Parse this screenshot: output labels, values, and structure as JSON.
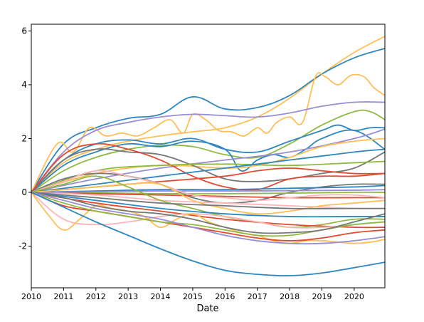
{
  "chart_data": {
    "type": "line",
    "title": "",
    "xlabel": "Date",
    "ylabel": "",
    "xlim": [
      2010.0,
      2020.95
    ],
    "ylim": [
      -3.55,
      6.25
    ],
    "x_ticks": [
      2010,
      2011,
      2012,
      2013,
      2014,
      2015,
      2016,
      2017,
      2018,
      2019,
      2020
    ],
    "x_tick_labels": [
      "2010",
      "2011",
      "2012",
      "2013",
      "2014",
      "2015",
      "2016",
      "2017",
      "2018",
      "2019",
      "2020"
    ],
    "y_ticks": [
      -2,
      0,
      2,
      4,
      6
    ],
    "y_tick_labels": [
      "-2",
      "0",
      "2",
      "4",
      "6"
    ],
    "grid": false,
    "legend": "none",
    "series": [
      {
        "color": "#ffbf56",
        "x": [
          2010,
          2011,
          2012,
          2013,
          2014,
          2015,
          2016,
          2017,
          2018,
          2019,
          2020,
          2020.95
        ],
        "y": [
          0,
          1.1,
          1.6,
          1.9,
          2.1,
          2.25,
          2.4,
          2.8,
          3.5,
          4.4,
          5.2,
          5.8
        ]
      },
      {
        "color": "#2f87c0",
        "x": [
          2010,
          2011,
          2012,
          2013,
          2014,
          2015,
          2016,
          2017,
          2018,
          2019,
          2020,
          2020.95
        ],
        "y": [
          0,
          1.8,
          2.4,
          2.75,
          2.9,
          3.55,
          3.1,
          3.15,
          3.6,
          4.4,
          5.0,
          5.35
        ]
      },
      {
        "color": "#ffbf56",
        "x": [
          2010,
          2010.8,
          2011.3,
          2011.8,
          2012.3,
          2012.8,
          2013.3,
          2013.8,
          2014.3,
          2014.7,
          2015.0,
          2015.4,
          2015.8,
          2016.2,
          2016.6,
          2017.0,
          2017.3,
          2017.6,
          2018.0,
          2018.4,
          2018.8,
          2019.1,
          2019.5,
          2019.9,
          2020.3,
          2020.6,
          2020.95
        ],
        "y": [
          0,
          1.8,
          1.5,
          2.4,
          2.1,
          2.2,
          2.1,
          2.4,
          2.7,
          2.2,
          2.9,
          2.7,
          2.3,
          2.25,
          2.1,
          2.4,
          2.2,
          2.6,
          2.8,
          2.6,
          4.3,
          4.3,
          4.0,
          4.35,
          4.3,
          3.9,
          3.6
        ]
      },
      {
        "color": "#988ed5",
        "x": [
          2010,
          2011,
          2012,
          2013,
          2014,
          2015,
          2016,
          2017,
          2018,
          2019,
          2020,
          2020.95
        ],
        "y": [
          0,
          1.5,
          2.3,
          2.6,
          2.8,
          2.9,
          2.85,
          2.8,
          2.95,
          3.2,
          3.35,
          3.35
        ]
      },
      {
        "color": "#8eba42",
        "x": [
          2010,
          2011,
          2012,
          2013,
          2014,
          2015,
          2016,
          2017,
          2018,
          2019,
          2020,
          2020.5,
          2020.95
        ],
        "y": [
          0,
          0.8,
          1.3,
          1.6,
          1.75,
          1.7,
          1.4,
          1.3,
          1.8,
          2.5,
          3.0,
          3.0,
          2.7
        ]
      },
      {
        "color": "#2f87c0",
        "x": [
          2010,
          2011,
          2012,
          2013,
          2014,
          2015,
          2016,
          2017,
          2018,
          2019,
          2019.5,
          2020,
          2020.5,
          2020.95
        ],
        "y": [
          0,
          1.2,
          1.8,
          1.95,
          1.8,
          2.0,
          1.6,
          1.5,
          1.9,
          2.3,
          2.5,
          2.3,
          2.4,
          2.4
        ]
      },
      {
        "color": "#2f87c0",
        "x": [
          2010,
          2011,
          2012,
          2013,
          2014,
          2015,
          2016,
          2016.5,
          2017,
          2017.5,
          2018,
          2018.5,
          2019,
          2020,
          2020.95
        ],
        "y": [
          0,
          1.0,
          1.5,
          1.8,
          1.7,
          1.9,
          1.6,
          0.8,
          1.2,
          1.4,
          1.3,
          1.6,
          2.0,
          2.3,
          1.6
        ]
      },
      {
        "color": "#988ed5",
        "x": [
          2010,
          2012,
          2014,
          2016,
          2018,
          2020,
          2020.95
        ],
        "y": [
          0,
          0.5,
          0.9,
          1.2,
          1.5,
          2.0,
          2.35
        ]
      },
      {
        "color": "#ffbf56",
        "x": [
          2010,
          2012,
          2014,
          2016,
          2017,
          2018,
          2019,
          2020,
          2020.95
        ],
        "y": [
          0,
          0.7,
          1.0,
          0.9,
          1.0,
          1.3,
          1.7,
          1.9,
          2.0
        ]
      },
      {
        "color": "#777777",
        "x": [
          2010,
          2011,
          2012,
          2013,
          2014,
          2015,
          2016,
          2017,
          2018,
          2019,
          2020,
          2020.95
        ],
        "y": [
          0,
          1.2,
          1.6,
          1.5,
          1.4,
          1.0,
          0.5,
          0.4,
          0.5,
          0.7,
          0.9,
          1.5
        ]
      },
      {
        "color": "#e24a33",
        "x": [
          2010,
          2011,
          2012,
          2013,
          2014,
          2015,
          2016,
          2017,
          2018,
          2019,
          2020,
          2020.95
        ],
        "y": [
          0,
          1.4,
          1.8,
          1.6,
          1.2,
          0.6,
          0.2,
          0.1,
          0.5,
          0.6,
          0.6,
          0.7
        ]
      },
      {
        "color": "#8eba42",
        "x": [
          2010,
          2012,
          2014,
          2016,
          2018,
          2020,
          2020.95
        ],
        "y": [
          0,
          0.8,
          1.0,
          1.05,
          1.0,
          1.1,
          1.15
        ]
      },
      {
        "color": "#2f87c0",
        "x": [
          2010,
          2012,
          2014,
          2016,
          2018,
          2020,
          2020.95
        ],
        "y": [
          0,
          0.3,
          0.6,
          0.9,
          1.2,
          1.5,
          1.6
        ]
      },
      {
        "color": "#e24a33",
        "x": [
          2010,
          2012,
          2014,
          2016,
          2017,
          2018,
          2019,
          2020,
          2020.95
        ],
        "y": [
          0,
          0.2,
          0.4,
          0.6,
          0.8,
          0.9,
          0.8,
          0.7,
          0.7
        ]
      },
      {
        "color": "#777777",
        "x": [
          2010,
          2011,
          2012,
          2013,
          2014,
          2015,
          2016,
          2017,
          2018,
          2019,
          2020,
          2020.95
        ],
        "y": [
          0,
          0.5,
          0.7,
          0.6,
          0.3,
          -0.2,
          -0.4,
          -0.3,
          0.0,
          0.2,
          0.3,
          0.3
        ]
      },
      {
        "color": "#2f87c0",
        "x": [
          2010,
          2012,
          2014,
          2016,
          2018,
          2020,
          2020.95
        ],
        "y": [
          0,
          0.05,
          0.1,
          0.1,
          0.15,
          0.2,
          0.25
        ]
      },
      {
        "color": "#8eba42",
        "x": [
          2010,
          2012,
          2014,
          2016,
          2018,
          2020,
          2020.95
        ],
        "y": [
          0,
          -0.02,
          -0.05,
          -0.05,
          -0.03,
          0.0,
          0.0
        ]
      },
      {
        "color": "#e24a33",
        "x": [
          2010,
          2012,
          2014,
          2016,
          2018,
          2020,
          2020.95
        ],
        "y": [
          0,
          -0.05,
          -0.1,
          -0.15,
          -0.2,
          -0.2,
          -0.2
        ]
      },
      {
        "color": "#ffb5b8",
        "x": [
          2010,
          2012,
          2014,
          2016,
          2018,
          2020,
          2020.95
        ],
        "y": [
          0,
          -0.1,
          -0.3,
          -0.4,
          -0.5,
          -0.6,
          -0.6
        ]
      },
      {
        "color": "#988ed5",
        "x": [
          2010,
          2012,
          2014,
          2016,
          2018,
          2020,
          2020.95
        ],
        "y": [
          0,
          0.02,
          0.05,
          0.05,
          0.06,
          0.08,
          0.1
        ]
      },
      {
        "color": "#ffb5b8",
        "x": [
          2010,
          2011,
          2012,
          2013,
          2014,
          2015,
          2016,
          2017,
          2018,
          2019,
          2020,
          2020.95
        ],
        "y": [
          0,
          0.4,
          0.8,
          0.6,
          0.3,
          -0.1,
          -0.2,
          -0.3,
          -0.2,
          -0.1,
          -0.1,
          -0.2
        ]
      },
      {
        "color": "#ffbf56",
        "x": [
          2010,
          2011,
          2012,
          2013,
          2014,
          2015,
          2016,
          2017,
          2018,
          2019,
          2020,
          2020.95
        ],
        "y": [
          0,
          0.1,
          0.2,
          0.3,
          0.3,
          -0.3,
          -0.6,
          -0.8,
          -0.7,
          -0.5,
          -0.4,
          -0.3
        ]
      },
      {
        "color": "#8eba42",
        "x": [
          2010,
          2011,
          2012,
          2013,
          2014,
          2015,
          2016,
          2017,
          2018,
          2019,
          2020,
          2020.95
        ],
        "y": [
          0,
          0.3,
          0.6,
          0.2,
          -0.3,
          -0.6,
          -0.9,
          -1.1,
          -1.3,
          -1.2,
          -1.0,
          -1.0
        ]
      },
      {
        "color": "#777777",
        "x": [
          2010,
          2012,
          2014,
          2016,
          2018,
          2020,
          2020.95
        ],
        "y": [
          0,
          -0.2,
          -0.4,
          -0.5,
          -0.6,
          -0.6,
          -0.6
        ]
      },
      {
        "color": "#e24a33",
        "x": [
          2010,
          2012,
          2014,
          2016,
          2018,
          2020,
          2020.95
        ],
        "y": [
          0,
          -0.4,
          -0.7,
          -1.0,
          -1.2,
          -1.3,
          -1.3
        ]
      },
      {
        "color": "#2f87c0",
        "x": [
          2010,
          2012,
          2014,
          2016,
          2018,
          2020,
          2020.95
        ],
        "y": [
          0,
          -0.3,
          -0.6,
          -0.8,
          -0.9,
          -0.9,
          -0.9
        ]
      },
      {
        "color": "#ffb5b8",
        "x": [
          2010,
          2011,
          2012,
          2013,
          2014,
          2015,
          2016,
          2017,
          2018,
          2019,
          2020,
          2020.95
        ],
        "y": [
          0,
          -1.0,
          -1.2,
          -1.1,
          -0.9,
          -0.8,
          -0.9,
          -1.1,
          -1.3,
          -1.3,
          -1.2,
          -1.1
        ]
      },
      {
        "color": "#ffbf56",
        "x": [
          2010,
          2010.5,
          2011,
          2011.5,
          2012,
          2012.5,
          2013,
          2013.5,
          2014,
          2014.5,
          2015,
          2015.5,
          2016,
          2016.5,
          2017,
          2017.5,
          2018,
          2018.5,
          2019,
          2019.5,
          2020,
          2020.5,
          2020.95
        ],
        "y": [
          0,
          -0.8,
          -1.4,
          -1.0,
          -0.5,
          -0.6,
          -0.7,
          -0.9,
          -1.3,
          -1.0,
          -0.8,
          -1.1,
          -1.3,
          -1.5,
          -1.6,
          -1.8,
          -1.9,
          -1.8,
          -1.8,
          -1.85,
          -1.9,
          -1.85,
          -1.75
        ]
      },
      {
        "color": "#e24a33",
        "x": [
          2010,
          2011,
          2012,
          2013,
          2014,
          2015,
          2016,
          2017,
          2018,
          2019,
          2020,
          2020.95
        ],
        "y": [
          0,
          -0.5,
          -0.7,
          -0.9,
          -1.1,
          -1.3,
          -1.5,
          -1.7,
          -1.8,
          -1.7,
          -1.5,
          -1.4
        ]
      },
      {
        "color": "#8eba42",
        "x": [
          2010,
          2011,
          2012,
          2013,
          2014,
          2015,
          2016,
          2017,
          2018,
          2019,
          2020,
          2020.95
        ],
        "y": [
          0,
          -0.4,
          -0.7,
          -0.9,
          -1.1,
          -1.2,
          -1.4,
          -1.6,
          -1.6,
          -1.4,
          -1.2,
          -1.1
        ]
      },
      {
        "color": "#777777",
        "x": [
          2010,
          2011,
          2012,
          2013,
          2014,
          2015,
          2016,
          2017,
          2018,
          2019,
          2020,
          2020.95
        ],
        "y": [
          0,
          -0.2,
          -0.5,
          -0.7,
          -0.8,
          -1.0,
          -1.3,
          -1.5,
          -1.5,
          -1.4,
          -1.1,
          -0.8
        ]
      },
      {
        "color": "#988ed5",
        "x": [
          2010,
          2011,
          2012,
          2013,
          2014,
          2015,
          2016,
          2017,
          2018,
          2019,
          2020,
          2020.95
        ],
        "y": [
          0,
          -0.3,
          -0.6,
          -0.8,
          -1.0,
          -1.3,
          -1.6,
          -1.8,
          -1.9,
          -1.9,
          -1.8,
          -1.65
        ]
      },
      {
        "color": "#2f87c0",
        "x": [
          2010,
          2011,
          2012,
          2013,
          2014,
          2015,
          2016,
          2017,
          2018,
          2019,
          2020,
          2020.95
        ],
        "y": [
          0,
          -0.55,
          -1.1,
          -1.6,
          -2.1,
          -2.55,
          -2.9,
          -3.05,
          -3.1,
          -3.0,
          -2.8,
          -2.6
        ]
      }
    ]
  }
}
